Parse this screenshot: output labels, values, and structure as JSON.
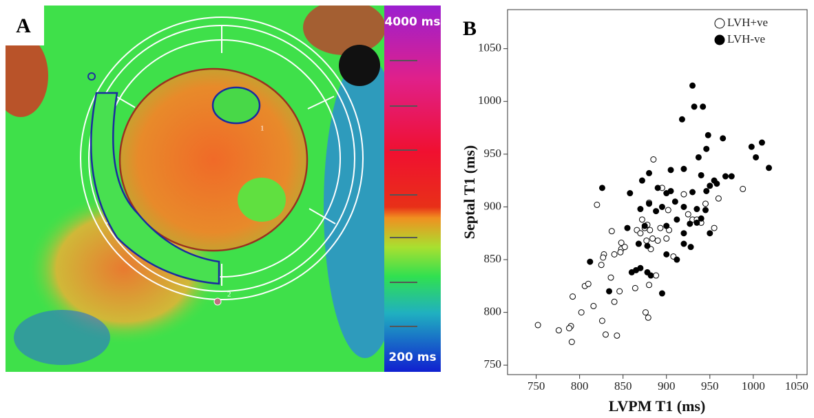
{
  "panel_a": {
    "label": "A",
    "colorbar_max": "4000 ms",
    "colorbar_min": "200 ms",
    "roi_labels": [
      "1",
      "2"
    ]
  },
  "chart_data": {
    "type": "scatter",
    "panel_label": "B",
    "x_label": "LVPM T1 (ms)",
    "y_label": "Septal T1 (ms)",
    "xlim": [
      717,
      1062
    ],
    "ylim": [
      741,
      1087
    ],
    "xticks": [
      750,
      800,
      850,
      900,
      950,
      1000,
      1050
    ],
    "yticks": [
      750,
      800,
      850,
      900,
      950,
      1000,
      1050
    ],
    "legend": "upper right",
    "series": [
      {
        "name": "LVH+ve",
        "color": "#000000",
        "marker_fill": "#ffffff",
        "x": [
          752,
          776,
          790,
          788,
          791,
          792,
          802,
          806,
          810,
          816,
          826,
          830,
          843,
          825,
          828,
          827,
          836,
          837,
          840,
          840,
          846,
          848,
          848,
          852,
          847,
          820,
          864,
          866,
          868,
          872,
          875,
          877,
          881,
          882,
          884,
          878,
          880,
          880,
          888,
          890,
          893,
          895,
          885,
          900,
          903,
          908,
          920,
          925,
          930,
          935,
          940,
          945,
          955,
          960,
          988,
          876,
          879,
          902,
          870
        ],
        "values": [
          788,
          783,
          787,
          785,
          772,
          815,
          800,
          825,
          827,
          806,
          792,
          779,
          778,
          845,
          855,
          852,
          833,
          877,
          855,
          810,
          820,
          866,
          860,
          862,
          857,
          902,
          823,
          878,
          865,
          888,
          880,
          868,
          878,
          860,
          870,
          883,
          904,
          826,
          835,
          868,
          880,
          918,
          945,
          870,
          878,
          853,
          912,
          893,
          888,
          888,
          885,
          903,
          880,
          908,
          917,
          800,
          795,
          897,
          875
        ]
      },
      {
        "name": "LVH-ve",
        "color": "#000000",
        "marker_fill": "#000000",
        "x": [
          930,
          932,
          942,
          918,
          948,
          965,
          1010,
          998,
          1003,
          1018,
          946,
          937,
          905,
          920,
          880,
          940,
          955,
          968,
          975,
          950,
          958,
          946,
          930,
          905,
          890,
          826,
          872,
          858,
          880,
          900,
          895,
          910,
          920,
          935,
          945,
          940,
          927,
          888,
          870,
          855,
          875,
          900,
          912,
          920,
          935,
          950,
          812,
          868,
          878,
          920,
          928,
          912,
          900,
          865,
          870,
          878,
          882,
          834,
          895,
          860
        ],
        "values": [
          1015,
          995,
          995,
          983,
          968,
          965,
          961,
          957,
          947,
          937,
          955,
          947,
          935,
          936,
          932,
          930,
          925,
          929,
          929,
          920,
          922,
          915,
          914,
          915,
          918,
          918,
          925,
          913,
          903,
          913,
          900,
          905,
          900,
          898,
          897,
          889,
          884,
          896,
          898,
          880,
          882,
          882,
          888,
          875,
          885,
          875,
          848,
          865,
          863,
          865,
          862,
          850,
          855,
          840,
          842,
          838,
          835,
          820,
          818,
          838
        ]
      }
    ]
  }
}
